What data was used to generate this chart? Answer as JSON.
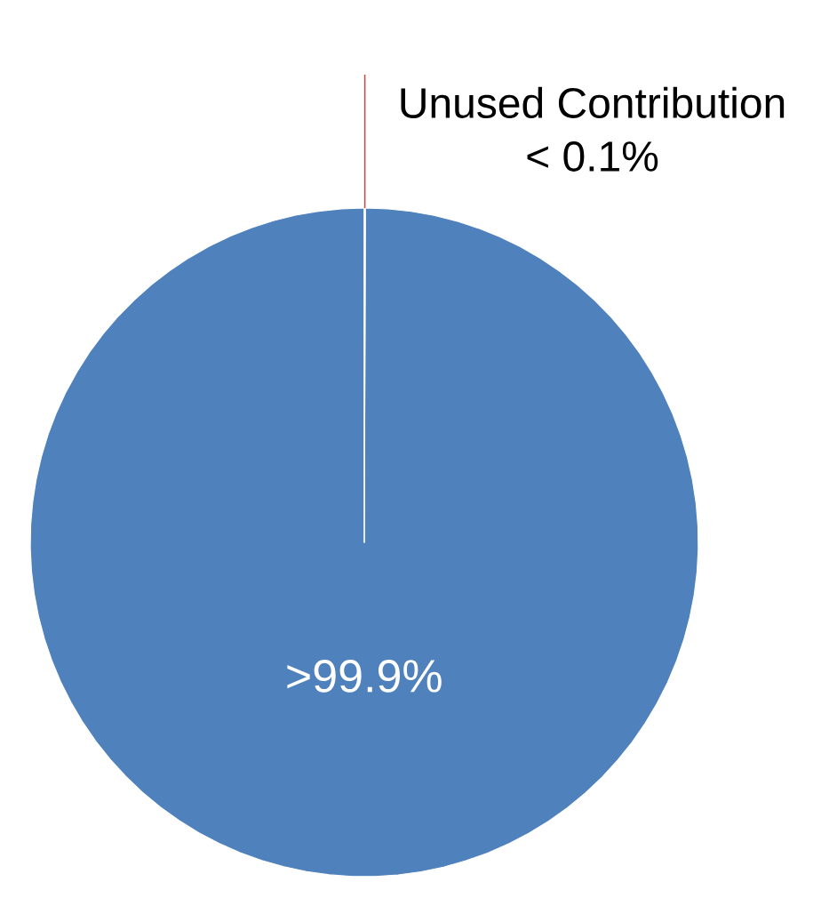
{
  "chart_data": {
    "type": "pie",
    "categories": [
      null,
      "Unused Contribution"
    ],
    "values": [
      99.95,
      0.05
    ],
    "colors": [
      "#4f81bd",
      "#c0504d"
    ],
    "value_labels": [
      ">99.9%",
      "< 0.1%"
    ]
  }
}
